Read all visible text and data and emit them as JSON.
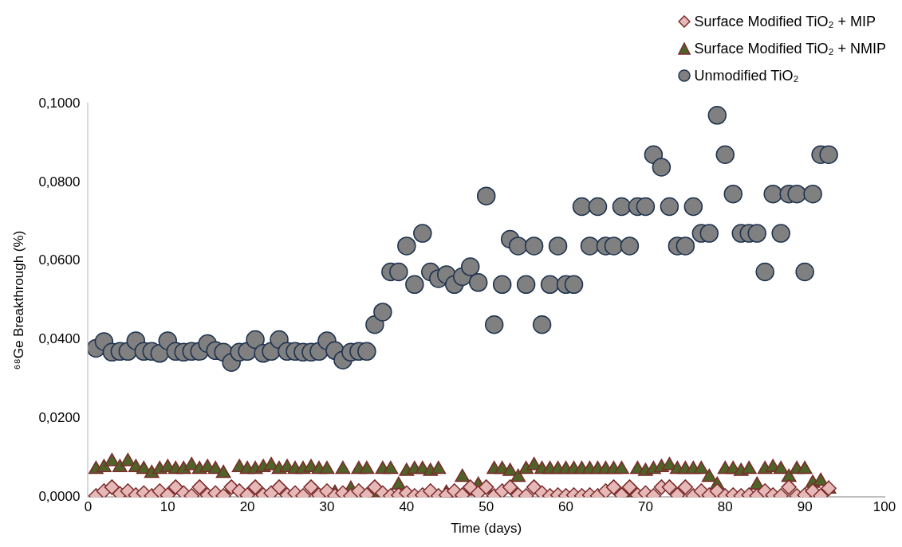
{
  "chart_data": {
    "type": "scatter",
    "xlabel": "Time (days)",
    "ylabel": "⁶⁸Ge Breakthrough (%)",
    "x": [
      1,
      2,
      3,
      4,
      5,
      6,
      7,
      8,
      9,
      10,
      11,
      12,
      13,
      14,
      15,
      16,
      17,
      18,
      19,
      20,
      21,
      22,
      23,
      24,
      25,
      26,
      27,
      28,
      29,
      30,
      31,
      32,
      33,
      34,
      35,
      36,
      37,
      38,
      39,
      40,
      41,
      42,
      43,
      44,
      45,
      46,
      47,
      48,
      49,
      50,
      51,
      52,
      53,
      54,
      55,
      56,
      57,
      58,
      59,
      60,
      61,
      62,
      63,
      64,
      65,
      66,
      67,
      68,
      69,
      70,
      71,
      72,
      73,
      74,
      75,
      76,
      77,
      78,
      79,
      80,
      81,
      82,
      83,
      84,
      85,
      86,
      87,
      88,
      89,
      90,
      91,
      92,
      93
    ],
    "xlim": [
      0,
      100
    ],
    "xticks": [
      0,
      10,
      20,
      30,
      40,
      50,
      60,
      70,
      80,
      90,
      100
    ],
    "ylim": [
      0,
      0.1
    ],
    "yticks": [
      {
        "value": 0,
        "label": "0,0000"
      },
      {
        "value": 0.02,
        "label": "0,0200"
      },
      {
        "value": 0.04,
        "label": "0,0400"
      },
      {
        "value": 0.06,
        "label": "0,0600"
      },
      {
        "value": 0.08,
        "label": "0,0800"
      },
      {
        "value": 0.1,
        "label": "0,1000"
      }
    ],
    "grid": false,
    "legend": "top right",
    "series": [
      {
        "name": "Surface Modified TiO₂ + MIP",
        "color": "#e6b8b7",
        "marker": "diamond",
        "values": [
          0.0003,
          0.0015,
          0.0025,
          0.0008,
          0.0015,
          0.0005,
          0.001,
          0.0003,
          0.0015,
          0.0005,
          0.0025,
          0.001,
          0.0003,
          0.0025,
          0.0005,
          0.001,
          0.0003,
          0.0025,
          0.0015,
          0.0005,
          0.0025,
          0.0005,
          0.001,
          0.0025,
          0.0005,
          0.001,
          0.0003,
          0.0025,
          0.0005,
          0.0015,
          0.0003,
          0.001,
          0.0003,
          0.0015,
          0.0005,
          0.0025,
          0.001,
          0.0003,
          0.0005,
          0.001,
          0.0003,
          0.0005,
          0.0015,
          0.0003,
          0.0005,
          0.0015,
          0.0005,
          0.0025,
          0.001,
          0.0025,
          0.0003,
          0.0015,
          0.0025,
          0.0005,
          0.0003,
          0.0025,
          0.001,
          0.0003,
          0.0005,
          0.0003,
          0.0005,
          0.0003,
          0.0005,
          0.0003,
          0.0015,
          0.0025,
          0.0005,
          0.0025,
          0.0005,
          0.001,
          0.0003,
          0.0025,
          0.0025,
          0.0005,
          0.0025,
          0.0003,
          0.0015,
          0.0005,
          0.0015,
          0.0003,
          0.0005,
          0.0003,
          0.0005,
          0.0003,
          0.0015,
          0.0005,
          0.0003,
          0.0025,
          0.0003,
          0.0005,
          0.0015,
          0.0003,
          0.0022
        ]
      },
      {
        "name": "Surface Modified TiO₂ + NMIP",
        "color": "#4f6228",
        "marker": "triangle",
        "values": [
          0.007,
          0.0075,
          0.009,
          0.0075,
          0.009,
          0.0075,
          0.007,
          0.006,
          0.007,
          0.0075,
          0.007,
          0.007,
          0.008,
          0.007,
          0.0075,
          0.007,
          0.006,
          0.002,
          0.0075,
          0.007,
          0.007,
          0.0075,
          0.008,
          0.007,
          0.0075,
          0.007,
          0.007,
          0.0075,
          0.007,
          0.007,
          0.001,
          0.007,
          0.002,
          0.007,
          0.007,
          0.001,
          0.007,
          0.007,
          0.003,
          0.0065,
          0.007,
          0.007,
          0.0065,
          0.007,
          0.001,
          0.001,
          0.005,
          0.0015,
          0.003,
          0.002,
          0.007,
          0.007,
          0.0065,
          0.005,
          0.007,
          0.008,
          0.007,
          0.007,
          0.007,
          0.007,
          0.007,
          0.007,
          0.007,
          0.007,
          0.007,
          0.007,
          0.007,
          0.001,
          0.007,
          0.0065,
          0.007,
          0.0075,
          0.008,
          0.007,
          0.007,
          0.007,
          0.007,
          0.005,
          0.003,
          0.007,
          0.007,
          0.0065,
          0.007,
          0.003,
          0.007,
          0.0075,
          0.007,
          0.005,
          0.007,
          0.007,
          0.0035,
          0.004,
          0.002
        ]
      },
      {
        "name": "Unmodified TiO₂",
        "color": "#808080",
        "marker": "circle",
        "values": [
          0.0378,
          0.0395,
          0.0368,
          0.037,
          0.037,
          0.0397,
          0.037,
          0.037,
          0.0365,
          0.0397,
          0.037,
          0.0368,
          0.037,
          0.037,
          0.039,
          0.0372,
          0.0368,
          0.0342,
          0.0368,
          0.037,
          0.04,
          0.0365,
          0.037,
          0.04,
          0.037,
          0.037,
          0.0368,
          0.0368,
          0.037,
          0.0397,
          0.0372,
          0.0348,
          0.0368,
          0.037,
          0.037,
          0.0438,
          0.047,
          0.0572,
          0.0572,
          0.0638,
          0.054,
          0.067,
          0.0572,
          0.0555,
          0.0565,
          0.054,
          0.056,
          0.0585,
          0.0545,
          0.0765,
          0.0438,
          0.054,
          0.0655,
          0.0638,
          0.054,
          0.0638,
          0.0438,
          0.054,
          0.0638,
          0.054,
          0.054,
          0.0738,
          0.0638,
          0.0738,
          0.0638,
          0.0638,
          0.0738,
          0.0638,
          0.0738,
          0.0738,
          0.087,
          0.0838,
          0.0738,
          0.0638,
          0.0638,
          0.0738,
          0.067,
          0.067,
          0.097,
          0.087,
          0.077,
          0.067,
          0.067,
          0.067,
          0.0572,
          0.077,
          0.067,
          0.077,
          0.077,
          0.0572,
          0.077,
          0.087,
          0.087
        ]
      }
    ]
  }
}
